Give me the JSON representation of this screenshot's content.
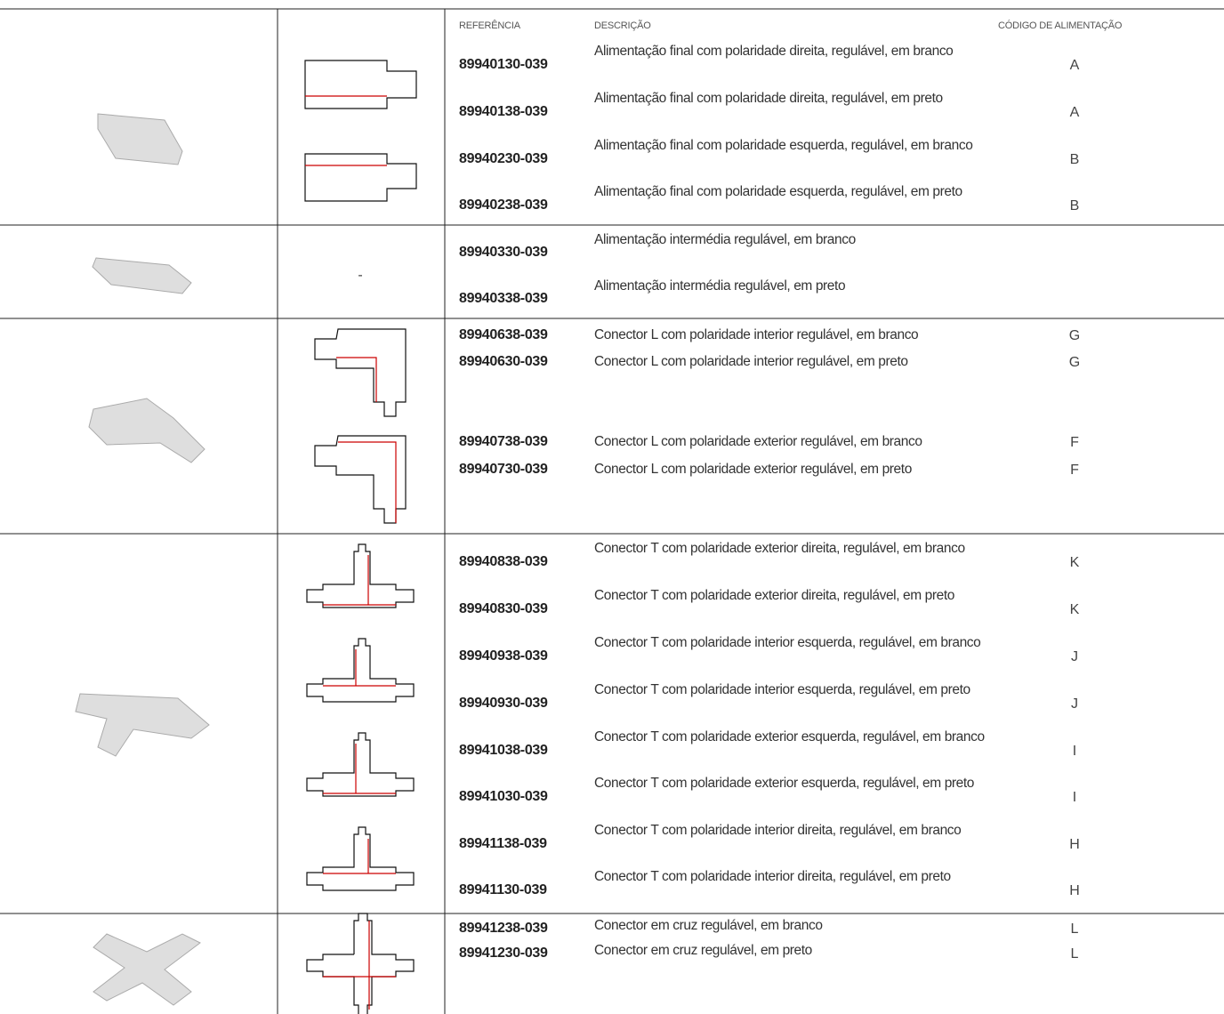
{
  "header": {
    "reference": "REFERÊNCIA",
    "description": "DESCRIÇÃO",
    "feed_code": "CÓDIGO DE ALIMENTAÇÃO"
  },
  "groups": [
    {
      "rows": [
        {
          "ref": "89940130-039",
          "desc": "Alimentação final com polaridade direita, regulável, em branco",
          "code": "A"
        },
        {
          "ref": "89940138-039",
          "desc": "Alimentação final com polaridade direita, regulável, em preto",
          "code": "A"
        },
        {
          "ref": "89940230-039",
          "desc": "Alimentação final com polaridade esquerda, regulável, em branco",
          "code": "B"
        },
        {
          "ref": "89940238-039",
          "desc": "Alimentação final com polaridade esquerda, regulável, em preto",
          "code": "B"
        }
      ]
    },
    {
      "drawing": "-",
      "rows": [
        {
          "ref": "89940330-039",
          "desc": "Alimentação intermédia regulável, em branco"
        },
        {
          "ref": "89940338-039",
          "desc": "Alimentação intermédia regulável, em preto"
        }
      ]
    },
    {
      "rows": [
        {
          "ref": "89940638-039",
          "desc": "Conector L com polaridade interior regulável, em branco",
          "code": "G"
        },
        {
          "ref": "89940630-039",
          "desc": "Conector L com polaridade interior regulável, em preto",
          "code": "G"
        },
        {
          "ref": "89940738-039",
          "desc": "Conector L com polaridade exterior regulável, em branco",
          "code": "F"
        },
        {
          "ref": "89940730-039",
          "desc": "Conector L com polaridade exterior regulável, em preto",
          "code": "F"
        }
      ]
    },
    {
      "rows": [
        {
          "ref": "89940838-039",
          "desc": "Conector T com polaridade exterior direita, regulável, em branco",
          "code": "K"
        },
        {
          "ref": "89940830-039",
          "desc": "Conector T com polaridade exterior direita, regulável, em preto",
          "code": "K"
        },
        {
          "ref": "89940938-039",
          "desc": "Conector T com polaridade interior esquerda, regulável, em branco",
          "code": "J"
        },
        {
          "ref": "89940930-039",
          "desc": "Conector T com polaridade interior esquerda, regulável, em preto",
          "code": "J"
        },
        {
          "ref": "89941038-039",
          "desc": "Conector T com polaridade exterior esquerda, regulável, em branco",
          "code": "I"
        },
        {
          "ref": "89941030-039",
          "desc": "Conector T com polaridade exterior esquerda, regulável, em preto",
          "code": "I"
        },
        {
          "ref": "89941138-039",
          "desc": "Conector T com polaridade interior direita, regulável, em branco",
          "code": "H"
        },
        {
          "ref": "89941130-039",
          "desc": "Conector T com polaridade interior direita, regulável, em preto",
          "code": "H"
        }
      ]
    },
    {
      "rows": [
        {
          "ref": "89941238-039",
          "desc": "Conector em cruz regulável, em branco",
          "code": "L"
        },
        {
          "ref": "89941230-039",
          "desc": "Conector em cruz regulável, em preto",
          "code": "L"
        }
      ]
    }
  ]
}
